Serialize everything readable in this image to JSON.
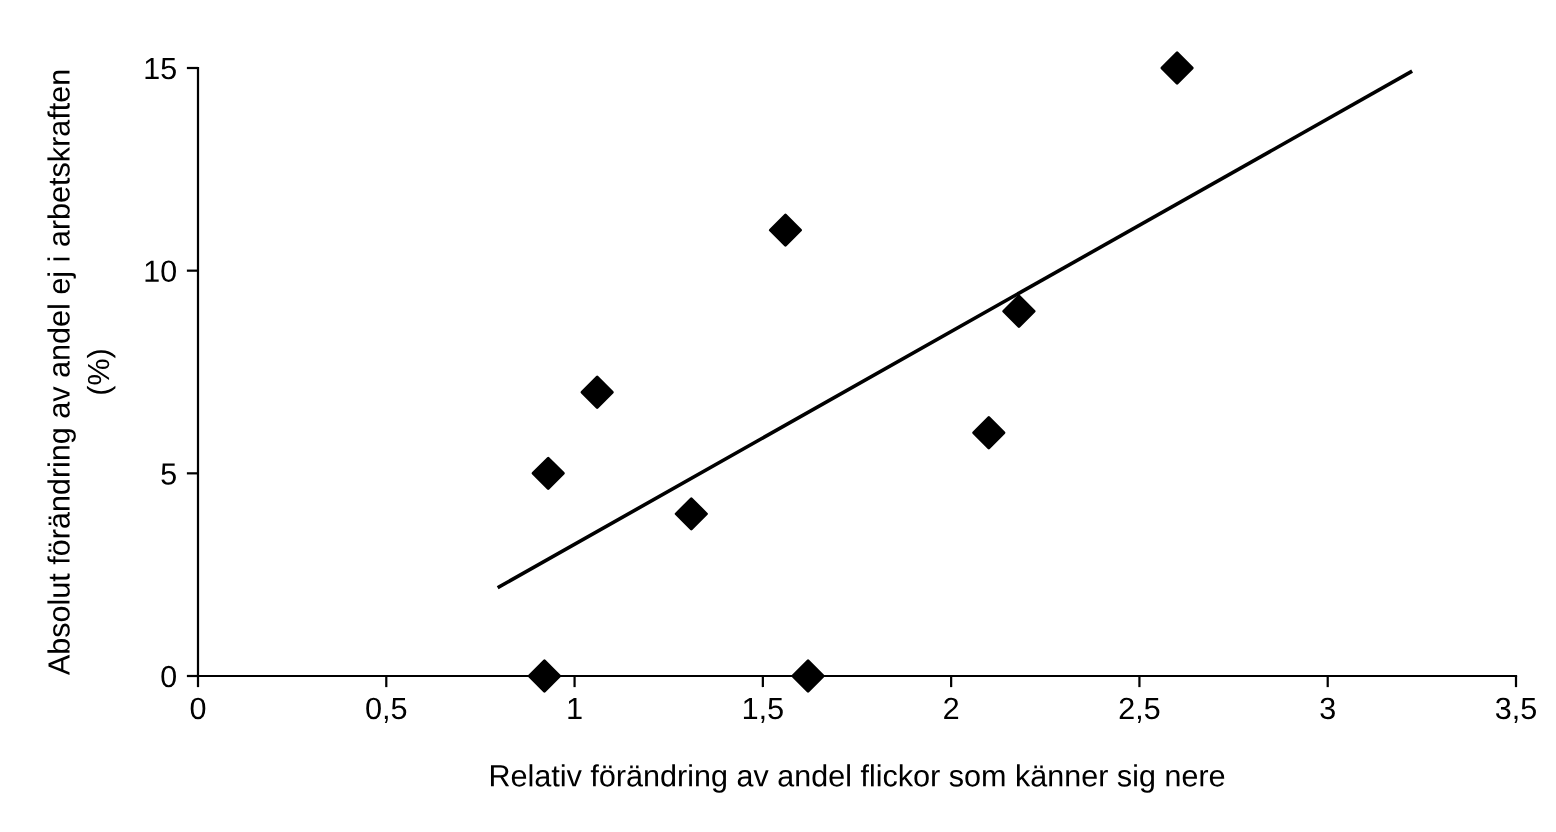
{
  "chart_data": {
    "type": "scatter",
    "xlabel": "Relativ förändring av andel flickor som känner sig nere",
    "ylabel": "Absolut förändring av andel ej i arbetskraften\n(%)",
    "series": [
      {
        "type": "scatter",
        "color": "#000000",
        "marker": "diamond",
        "x": [
          0.92,
          0.93,
          1.06,
          1.31,
          1.56,
          1.62,
          2.1,
          2.18,
          2.6
        ],
        "values": [
          0,
          5,
          7,
          4,
          11,
          0,
          6,
          9,
          15
        ]
      },
      {
        "type": "line",
        "color": "#000000",
        "marker": "none",
        "line_style": "solid",
        "x": [
          0.8,
          3.22
        ],
        "values": [
          2.2,
          14.9
        ]
      }
    ],
    "xlim": [
      0,
      3.5
    ],
    "xticks": [
      0,
      {
        "value": 0.5,
        "label": "0,5"
      },
      1,
      {
        "value": 1.5,
        "label": "1,5"
      },
      2,
      {
        "value": 2.5,
        "label": "2,5"
      },
      3,
      {
        "value": 3.5,
        "label": "3,5"
      }
    ],
    "ylim": [
      0,
      15
    ],
    "yticks": [
      0,
      5,
      10,
      15
    ],
    "grid": false,
    "legend": false
  }
}
